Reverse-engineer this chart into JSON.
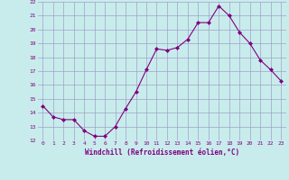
{
  "x": [
    0,
    1,
    2,
    3,
    4,
    5,
    6,
    7,
    8,
    9,
    10,
    11,
    12,
    13,
    14,
    15,
    16,
    17,
    18,
    19,
    20,
    21,
    22,
    23
  ],
  "y": [
    14.5,
    13.7,
    13.5,
    13.5,
    12.7,
    12.3,
    12.3,
    13.0,
    14.3,
    15.5,
    17.1,
    18.6,
    18.5,
    18.7,
    19.3,
    20.5,
    20.5,
    21.7,
    21.0,
    19.8,
    19.0,
    17.8,
    17.1,
    16.3
  ],
  "line_color": "#800080",
  "marker": "D",
  "markersize": 2,
  "bg_color": "#c8ecec",
  "grid_color": "#a0a0c8",
  "xlabel": "Windchill (Refroidissement éolien,°C)",
  "xlabel_color": "#800080",
  "tick_color": "#800080",
  "ylim": [
    12,
    22
  ],
  "xlim": [
    -0.5,
    23.5
  ],
  "yticks": [
    12,
    13,
    14,
    15,
    16,
    17,
    18,
    19,
    20,
    21,
    22
  ],
  "xticks": [
    0,
    1,
    2,
    3,
    4,
    5,
    6,
    7,
    8,
    9,
    10,
    11,
    12,
    13,
    14,
    15,
    16,
    17,
    18,
    19,
    20,
    21,
    22,
    23
  ]
}
